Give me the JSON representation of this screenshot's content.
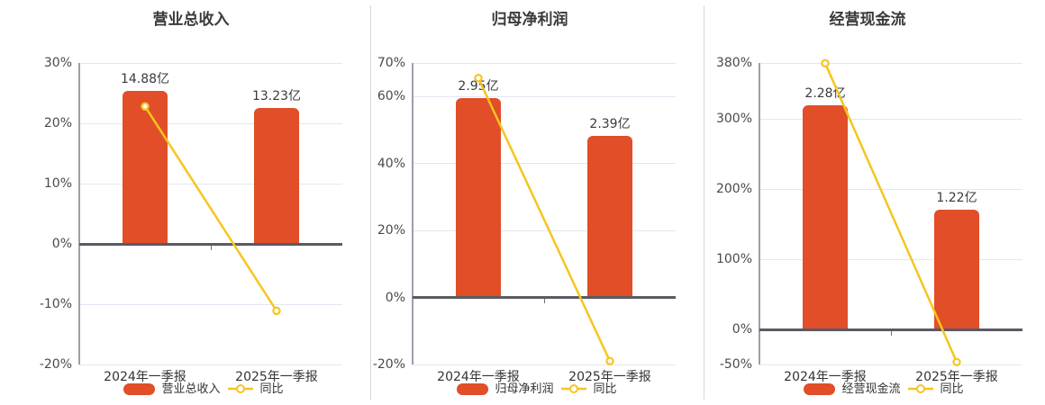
{
  "colors": {
    "bar": "#e14e28",
    "line": "#f6c51f",
    "marker_fill": "#ffffff",
    "grid": "#e1e8f2",
    "zero_line": "#5a5a64",
    "zero_tick": "#70707a",
    "axis_line": "#9aa0a8",
    "separator": "#d6d6da",
    "title_text": "#3a3a3a",
    "tick_text": "#4a4a4a",
    "category_text": "#333333",
    "value_text": "#3a3a3a",
    "legend_text": "#333333"
  },
  "chart_data": [
    {
      "type": "bar+line",
      "title": "营业总收入",
      "categories": [
        "2024年一季报",
        "2025年一季报"
      ],
      "bar_series": {
        "name": "营业总收入",
        "unit": "亿",
        "values": [
          14.88,
          13.23
        ],
        "labels": [
          "14.88亿",
          "13.23亿"
        ]
      },
      "line_series": {
        "name": "同比",
        "unit": "%",
        "values": [
          22.8,
          -11.1
        ]
      },
      "y_axis": {
        "format": "percent",
        "min": -20,
        "max": 30,
        "ticks": [
          30,
          20,
          10,
          0,
          -10,
          -20
        ]
      },
      "bar_display_pct": [
        25.4,
        22.58
      ],
      "legend_position": "bottom",
      "grid": true
    },
    {
      "type": "bar+line",
      "title": "归母净利润",
      "categories": [
        "2024年一季报",
        "2025年一季报"
      ],
      "bar_series": {
        "name": "归母净利润",
        "unit": "亿",
        "values": [
          2.95,
          2.39
        ],
        "labels": [
          "2.95亿",
          "2.39亿"
        ]
      },
      "line_series": {
        "name": "同比",
        "unit": "%",
        "values": [
          65.5,
          -19.0
        ]
      },
      "y_axis": {
        "format": "percent",
        "min": -20,
        "max": 70,
        "ticks": [
          70,
          60,
          40,
          20,
          0,
          -20
        ]
      },
      "bar_display_pct": [
        59.5,
        48.2
      ],
      "legend_position": "bottom",
      "grid": true
    },
    {
      "type": "bar+line",
      "title": "经营现金流",
      "categories": [
        "2024年一季报",
        "2025年一季报"
      ],
      "bar_series": {
        "name": "经营现金流",
        "unit": "亿",
        "values": [
          2.28,
          1.22
        ],
        "labels": [
          "2.28亿",
          "1.22亿"
        ]
      },
      "line_series": {
        "name": "同比",
        "unit": "%",
        "values": [
          379.6,
          -46.5
        ]
      },
      "y_axis": {
        "format": "percent",
        "min": -50,
        "max": 380,
        "ticks": [
          380,
          300,
          200,
          100,
          0,
          -50
        ]
      },
      "bar_display_pct": [
        320,
        171.2
      ],
      "legend_position": "bottom",
      "grid": true
    }
  ]
}
